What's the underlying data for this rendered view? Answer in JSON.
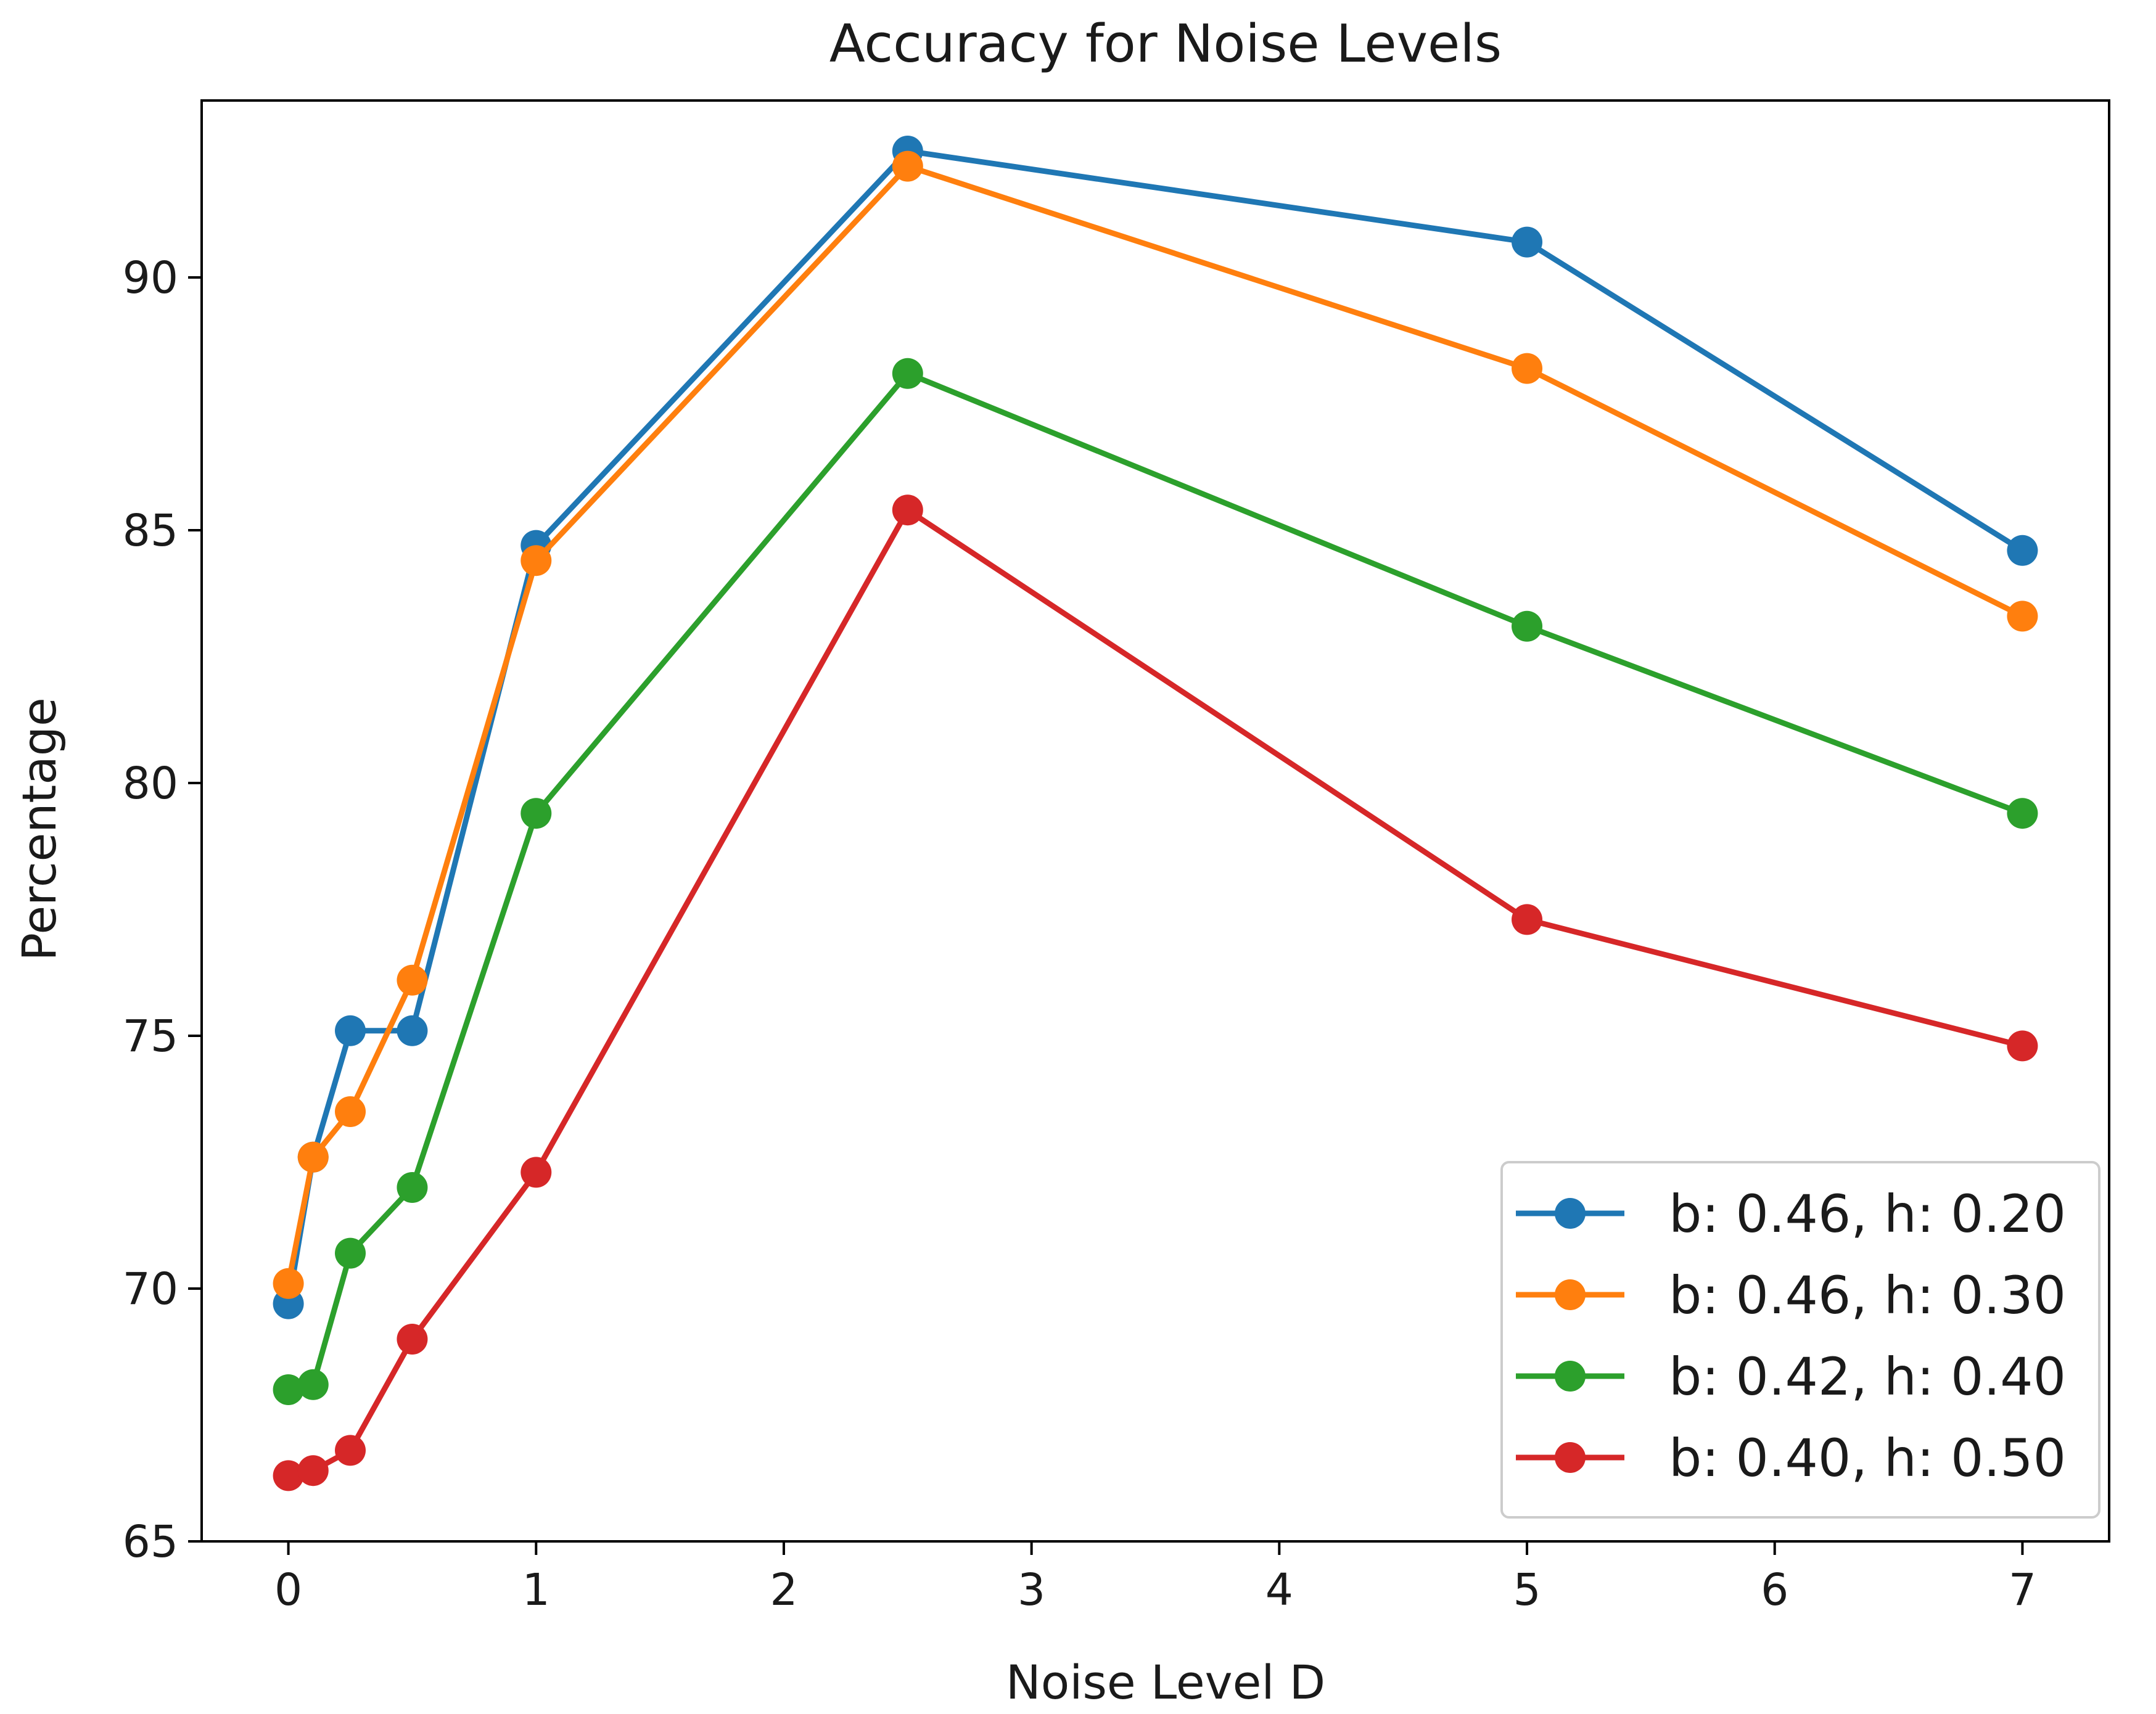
{
  "chart_data": {
    "type": "line",
    "title": "Accuracy for Noise Levels",
    "xlabel": "Noise Level D",
    "ylabel": "Percentage",
    "xlim": [
      -0.35,
      7.35
    ],
    "ylim": [
      65,
      93.5
    ],
    "xticks": [
      0,
      1,
      2,
      3,
      4,
      5,
      6,
      7
    ],
    "yticks": [
      65,
      70,
      75,
      80,
      85,
      90
    ],
    "x": [
      0,
      0.1,
      0.25,
      0.5,
      1,
      2.5,
      5,
      7
    ],
    "grid": false,
    "legend_position": "lower-right",
    "series": [
      {
        "name": "b: 0.46, h: 0.20",
        "color": "#1f77b4",
        "values": [
          69.7,
          72.6,
          75.1,
          75.1,
          84.7,
          92.5,
          90.7,
          84.6
        ]
      },
      {
        "name": "b: 0.46, h: 0.30",
        "color": "#ff7f0e",
        "values": [
          70.1,
          72.6,
          73.5,
          76.1,
          84.4,
          92.2,
          88.2,
          83.3
        ]
      },
      {
        "name": "b: 0.42, h: 0.40",
        "color": "#2ca02c",
        "values": [
          68.0,
          68.1,
          70.7,
          72.0,
          79.4,
          88.1,
          83.1,
          79.4
        ]
      },
      {
        "name": "b: 0.40, h: 0.50",
        "color": "#d62728",
        "values": [
          66.3,
          66.4,
          66.8,
          69.0,
          72.3,
          85.4,
          77.3,
          74.8
        ]
      }
    ]
  }
}
